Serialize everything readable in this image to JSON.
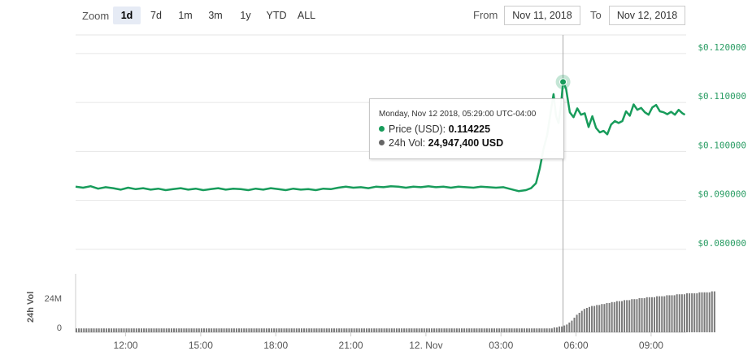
{
  "toolbar": {
    "zoom_label": "Zoom",
    "zoom_buttons": [
      "1d",
      "7d",
      "1m",
      "3m",
      "1y",
      "YTD",
      "ALL"
    ],
    "active_zoom": "1d",
    "from_label": "From",
    "from_value": "Nov 11, 2018",
    "to_label": "To",
    "to_value": "Nov 12, 2018"
  },
  "tooltip": {
    "header": "Monday, Nov 12 2018, 05:29:00 UTC-04:00",
    "price_label": "Price (USD):",
    "price_value": "0.114225",
    "vol_label": "24h Vol:",
    "vol_value": "24,947,400 USD"
  },
  "colors": {
    "price": "#189c5b",
    "volume": "#7a7a7a",
    "grid": "#e6e6e6",
    "tick_text": "#2a9d64"
  },
  "chart_data": {
    "type": "line",
    "x_tick_labels": [
      "12:00",
      "15:00",
      "18:00",
      "21:00",
      "12. Nov",
      "03:00",
      "06:00",
      "09:00"
    ],
    "x_ticks_hours": [
      12,
      15,
      18,
      21,
      24,
      27,
      30,
      33
    ],
    "x_range_hours": [
      10.0,
      34.4
    ],
    "y_tick_labels": [
      "$0.080000",
      "$0.090000",
      "$0.100000",
      "$0.110000",
      "$0.120000"
    ],
    "y_ticks": [
      0.08,
      0.09,
      0.1,
      0.11,
      0.12
    ],
    "ylim": [
      0.075,
      0.1238
    ],
    "volume_axis_label": "24h Vol",
    "volume_tick_labels": [
      "0",
      "24M"
    ],
    "volume_ticks": [
      0,
      24
    ],
    "volume_ylim": [
      0,
      60
    ],
    "series": [
      {
        "x": [
          10.0,
          10.3,
          10.6,
          10.9,
          11.2,
          11.5,
          11.8,
          12.1,
          12.4,
          12.7,
          13.0,
          13.3,
          13.6,
          13.9,
          14.2,
          14.5,
          14.8,
          15.1,
          15.4,
          15.7,
          16.0,
          16.3,
          16.6,
          16.9,
          17.2,
          17.5,
          17.8,
          18.1,
          18.4,
          18.7,
          19.0,
          19.3,
          19.6,
          19.9,
          20.2,
          20.5,
          20.8,
          21.1,
          21.4,
          21.7,
          22.0,
          22.3,
          22.6,
          22.9,
          23.2,
          23.5,
          23.8,
          24.1,
          24.4,
          24.7,
          25.0,
          25.3,
          25.6,
          25.9,
          26.2,
          26.5,
          26.8,
          27.1,
          27.4,
          27.7,
          28.0,
          28.2,
          28.4,
          28.55,
          28.7,
          28.85,
          29.0,
          29.1,
          29.2,
          29.3,
          29.4,
          29.48,
          29.6,
          29.75,
          29.9,
          30.05,
          30.2,
          30.35,
          30.5,
          30.65,
          30.8,
          30.95,
          31.1,
          31.25,
          31.4,
          31.55,
          31.7,
          31.85,
          32.0,
          32.15,
          32.3,
          32.45,
          32.6,
          32.75,
          32.9,
          33.05,
          33.2,
          33.35,
          33.5,
          33.65,
          33.8,
          33.95,
          34.1,
          34.25,
          34.35
        ],
        "y": [
          0.0928,
          0.0926,
          0.0929,
          0.0924,
          0.0927,
          0.0925,
          0.0922,
          0.0926,
          0.0923,
          0.0925,
          0.0922,
          0.0924,
          0.0921,
          0.0923,
          0.0925,
          0.0922,
          0.0924,
          0.0921,
          0.0923,
          0.0925,
          0.0922,
          0.0924,
          0.0923,
          0.0921,
          0.0924,
          0.0922,
          0.0925,
          0.0923,
          0.0921,
          0.0924,
          0.0922,
          0.0923,
          0.0921,
          0.0924,
          0.0923,
          0.0926,
          0.0928,
          0.0926,
          0.0927,
          0.0925,
          0.0928,
          0.0927,
          0.0929,
          0.0928,
          0.0926,
          0.0928,
          0.0927,
          0.0929,
          0.0927,
          0.0928,
          0.0926,
          0.0928,
          0.0927,
          0.0926,
          0.0928,
          0.0927,
          0.0926,
          0.0927,
          0.0923,
          0.0919,
          0.0921,
          0.0925,
          0.0935,
          0.0965,
          0.1005,
          0.1035,
          0.1085,
          0.1117,
          0.1072,
          0.1058,
          0.1095,
          0.1142,
          0.1128,
          0.108,
          0.107,
          0.1088,
          0.1075,
          0.1078,
          0.105,
          0.1072,
          0.1048,
          0.1039,
          0.1042,
          0.1035,
          0.1055,
          0.1062,
          0.1058,
          0.1062,
          0.1082,
          0.1073,
          0.1096,
          0.1085,
          0.1089,
          0.108,
          0.1075,
          0.109,
          0.1095,
          0.1082,
          0.108,
          0.1076,
          0.1081,
          0.1075,
          0.1085,
          0.1078,
          0.1075
        ]
      }
    ],
    "volume": {
      "hours_start": 10.0,
      "step_hours": 0.1,
      "values": [
        4,
        4,
        4,
        4,
        4,
        4,
        4,
        4,
        4,
        4,
        4,
        4,
        4,
        4,
        4,
        4,
        4,
        4,
        4,
        4,
        4,
        4,
        4,
        4,
        4,
        4,
        4,
        4,
        4,
        4,
        4,
        4,
        4,
        4,
        4,
        4,
        4,
        4,
        4,
        4,
        4,
        4,
        4,
        4,
        4,
        4,
        4,
        4,
        4,
        4,
        4,
        4,
        4,
        4,
        4,
        4,
        4,
        4,
        4,
        4,
        4,
        4,
        4,
        4,
        4,
        4,
        4,
        4,
        4,
        4,
        4,
        4,
        4,
        4,
        4,
        4,
        4,
        4,
        4,
        4,
        4,
        4,
        4,
        4,
        4,
        4,
        4,
        4,
        4,
        4,
        4,
        4,
        4,
        4,
        4,
        4,
        4,
        4,
        4,
        4,
        4,
        4,
        4,
        4,
        4,
        4,
        4,
        4,
        4,
        4,
        4,
        4,
        4,
        4,
        4,
        4,
        4,
        4,
        4,
        4,
        4,
        4,
        4,
        4,
        4,
        4,
        4,
        4,
        4,
        4,
        4,
        4,
        4,
        4,
        4,
        4,
        4,
        4,
        4,
        4,
        4,
        4,
        4,
        4,
        4,
        4,
        4,
        4,
        4,
        4,
        4,
        4,
        4,
        4,
        4,
        4,
        4,
        4,
        4,
        4,
        4,
        4,
        4,
        4,
        4,
        4,
        4,
        4,
        4,
        4,
        4,
        4,
        4,
        4,
        4,
        4,
        4,
        4,
        4,
        4,
        4,
        4,
        4,
        4,
        4,
        4,
        4,
        4,
        4,
        4,
        4,
        5,
        5,
        6,
        6,
        7,
        8,
        10,
        12,
        15,
        18,
        20,
        22,
        24,
        25,
        26,
        27,
        27,
        28,
        28,
        29,
        29,
        30,
        30,
        31,
        31,
        32,
        32,
        32,
        33,
        33,
        33,
        34,
        34,
        34,
        35,
        35,
        35,
        36,
        36,
        36,
        36,
        37,
        37,
        37,
        37,
        38,
        38,
        38,
        38,
        39,
        39,
        39,
        39,
        40,
        40,
        40,
        40,
        40,
        41,
        41,
        41,
        41,
        41,
        42,
        42
      ]
    }
  }
}
